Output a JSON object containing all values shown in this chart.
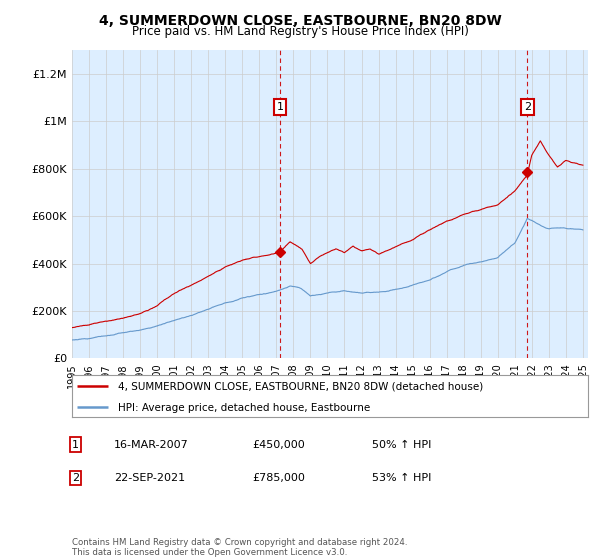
{
  "title": "4, SUMMERDOWN CLOSE, EASTBOURNE, BN20 8DW",
  "subtitle": "Price paid vs. HM Land Registry's House Price Index (HPI)",
  "ylim": [
    0,
    1300000
  ],
  "yticks": [
    0,
    200000,
    400000,
    600000,
    800000,
    1000000,
    1200000
  ],
  "ytick_labels": [
    "£0",
    "£200K",
    "£400K",
    "£600K",
    "£800K",
    "£1M",
    "£1.2M"
  ],
  "sale1": {
    "date_num": 2007.21,
    "price": 450000,
    "label": "1",
    "date_str": "16-MAR-2007",
    "pct": "50%"
  },
  "sale2": {
    "date_num": 2021.73,
    "price": 785000,
    "label": "2",
    "date_str": "22-SEP-2021",
    "pct": "53%"
  },
  "legend_line1": "4, SUMMERDOWN CLOSE, EASTBOURNE, BN20 8DW (detached house)",
  "legend_line2": "HPI: Average price, detached house, Eastbourne",
  "footer": "Contains HM Land Registry data © Crown copyright and database right 2024.\nThis data is licensed under the Open Government Licence v3.0.",
  "line_color_red": "#cc0000",
  "line_color_blue": "#6699cc",
  "fill_color_blue": "#ddeeff",
  "dashed_color": "#cc0000",
  "background_color": "#ffffff",
  "grid_color": "#cccccc",
  "annotation_box_color": "#cc0000",
  "red_anchors_t": [
    1995,
    1996,
    1997,
    1998,
    1999,
    2000,
    2001,
    2002,
    2003,
    2004,
    2005,
    2006,
    2007.21,
    2007.8,
    2008.5,
    2009,
    2009.5,
    2010,
    2010.5,
    2011,
    2011.5,
    2012,
    2012.5,
    2013,
    2014,
    2015,
    2016,
    2017,
    2018,
    2019,
    2020,
    2021.0,
    2021.73,
    2022.0,
    2022.5,
    2023.0,
    2023.5,
    2024.0,
    2025
  ],
  "red_anchors_v": [
    130000,
    140000,
    155000,
    165000,
    185000,
    220000,
    270000,
    310000,
    350000,
    390000,
    415000,
    430000,
    450000,
    490000,
    460000,
    400000,
    430000,
    450000,
    470000,
    455000,
    480000,
    460000,
    470000,
    450000,
    480000,
    510000,
    550000,
    590000,
    620000,
    640000,
    660000,
    720000,
    785000,
    870000,
    930000,
    870000,
    820000,
    850000,
    830000
  ],
  "blue_anchors_t": [
    1995,
    1996,
    1997,
    1998,
    1999,
    2000,
    2001,
    2002,
    2003,
    2004,
    2005,
    2006,
    2007,
    2007.8,
    2008.5,
    2009,
    2009.5,
    2010,
    2011,
    2012,
    2013,
    2014,
    2015,
    2016,
    2017,
    2018,
    2019,
    2020,
    2021.0,
    2021.73,
    2022.0,
    2022.5,
    2023.0,
    2023.5,
    2024.0,
    2025
  ],
  "blue_anchors_v": [
    78000,
    85000,
    95000,
    105000,
    118000,
    135000,
    160000,
    185000,
    210000,
    235000,
    255000,
    270000,
    285000,
    310000,
    295000,
    265000,
    270000,
    278000,
    285000,
    280000,
    278000,
    290000,
    305000,
    325000,
    355000,
    385000,
    400000,
    420000,
    480000,
    590000,
    580000,
    560000,
    545000,
    550000,
    545000,
    540000
  ]
}
